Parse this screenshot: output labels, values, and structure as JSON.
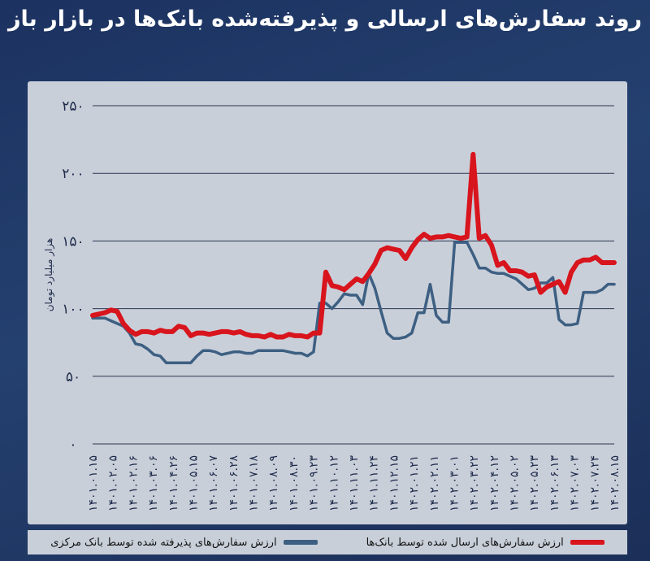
{
  "title": "روند سفارش‌های ارسالی و پذیرفته‌شده بانک‌ها در بازار باز",
  "colors": {
    "series1": "#d8141d",
    "series2": "#3d5f82"
  },
  "chart_data": {
    "type": "line",
    "ylabel": "هزار میلیارد تومان",
    "ylim": [
      0,
      250
    ],
    "yticks": [
      "۰",
      "۵۰",
      "۱۰۰",
      "۱۵۰",
      "۲۰۰",
      "۲۵۰"
    ],
    "ytick_values": [
      0,
      50,
      100,
      150,
      200,
      250
    ],
    "xticks": [
      "۱۴۰۱.۰۱.۱۵",
      "۱۴۰۱.۰۲.۰۵",
      "۱۴۰۱.۰۲.۱۶",
      "۱۴۰۱.۰۳.۰۶",
      "۱۴۰۱.۰۴.۲۶",
      "۱۴۰۱.۰۵.۱۵",
      "۱۴۰۱.۰۶.۰۷",
      "۱۴۰۱.۰۶.۲۸",
      "۱۴۰۱.۰۷.۱۸",
      "۱۴۰۱.۰۸.۰۹",
      "۱۴۰۱.۰۸.۳۰",
      "۱۴۰۱.۰۹.۲۳",
      "۱۴۰۱.۱۰.۱۲",
      "۱۴۰۱.۱۱.۰۳",
      "۱۴۰۱.۱۱.۲۴",
      "۱۴۰۱.۱۲.۱۵",
      "۱۴۰۲.۰۱.۲۱",
      "۱۴۰۲.۰۲.۱۱",
      "۱۴۰۲.۰۳.۰۱",
      "۱۴۰۲.۰۳.۲۲",
      "۱۴۰۲.۰۴.۱۲",
      "۱۴۰۲.۰۵.۰۲",
      "۱۴۰۲.۰۵.۲۳",
      "۱۴۰۲.۰۶.۱۳",
      "۱۴۰۲.۰۷.۰۳",
      "۱۴۰۲.۰۷.۲۴",
      "۱۴۰۲.۰۸.۱۵"
    ],
    "series": [
      {
        "name": "ارزش سفارش‌های ارسال شده توسط بانک‌ها",
        "values": [
          95,
          96,
          97,
          99,
          98,
          89,
          84,
          81,
          83,
          83,
          82,
          84,
          83,
          83,
          87,
          86,
          80,
          82,
          82,
          81,
          82,
          83,
          83,
          82,
          83,
          81,
          80,
          80,
          79,
          81,
          79,
          79,
          81,
          80,
          80,
          79,
          82,
          82,
          127,
          117,
          116,
          114,
          118,
          122,
          120,
          126,
          133,
          143,
          145,
          144,
          143,
          137,
          145,
          151,
          155,
          152,
          153,
          153,
          154,
          153,
          152,
          153,
          214,
          152,
          154,
          147,
          132,
          134,
          128,
          128,
          127,
          124,
          125,
          112,
          116,
          118,
          120,
          112,
          127,
          134,
          136,
          136,
          138,
          134,
          134,
          134
        ],
        "color": "#d8141d"
      },
      {
        "name": "ارزش سفارش‌های پذیرفته شده توسط بانک مرکزی",
        "values": [
          93,
          93,
          93,
          91,
          89,
          87,
          82,
          74,
          73,
          70,
          66,
          65,
          60,
          60,
          60,
          60,
          60,
          65,
          69,
          69,
          68,
          66,
          67,
          68,
          68,
          67,
          67,
          69,
          69,
          69,
          69,
          69,
          68,
          67,
          67,
          65,
          68,
          104,
          104,
          100,
          105,
          111,
          110,
          110,
          103,
          126,
          115,
          98,
          82,
          78,
          78,
          79,
          82,
          97,
          97,
          118,
          95,
          90,
          90,
          149,
          149,
          149,
          140,
          130,
          130,
          127,
          126,
          126,
          124,
          122,
          118,
          114,
          115,
          119,
          119,
          123,
          92,
          88,
          88,
          89,
          112,
          112,
          112,
          114,
          118,
          118
        ],
        "color": "#3d5f82"
      }
    ]
  }
}
